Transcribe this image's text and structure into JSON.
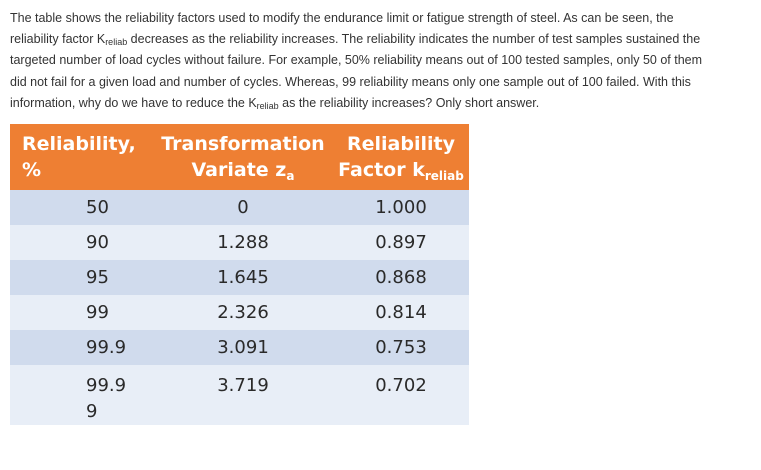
{
  "question": {
    "line1": "The table shows the reliability factors used to modify the endurance limit or fatigue strength of steel. As can be seen, the",
    "line2_pre": "reliability factor K",
    "line2_sub": "reliab",
    "line2_post": " decreases as the reliability increases. The reliability indicates the number of test samples sustained the",
    "line3": "targeted number of load cycles without failure. For example, 50% reliability means out of 100 tested samples, only 50 of them",
    "line4": "did not fail for a given load and number of cycles. Whereas, 99 reliability means only one sample out of 100 failed. With this",
    "line5_pre": "information, why do we have to reduce the K",
    "line5_sub": "reliab",
    "line5_post": " as the reliability increases? Only short answer."
  },
  "table": {
    "headers": {
      "reliability_line1": "Reliability,",
      "reliability_line2": "%",
      "transformation_line1": "Transformation",
      "transformation_line2": "Variate z",
      "transformation_sub": "a",
      "factor_line1": "Reliability",
      "factor_line2": "Factor k",
      "factor_sub": "reliab"
    },
    "rows": [
      {
        "reliability": "50",
        "z": "0",
        "k": "1.000"
      },
      {
        "reliability": "90",
        "z": "1.288",
        "k": "0.897"
      },
      {
        "reliability": "95",
        "z": "1.645",
        "k": "0.868"
      },
      {
        "reliability": "99",
        "z": "2.326",
        "k": "0.814"
      },
      {
        "reliability": "99.9",
        "z": "3.091",
        "k": "0.753"
      },
      {
        "reliability": "99.99",
        "z": "3.719",
        "k": "0.702"
      }
    ]
  },
  "colors": {
    "header_bg": "#ee7f33",
    "row_dark": "#d0dbed",
    "row_light": "#e8eef7"
  }
}
